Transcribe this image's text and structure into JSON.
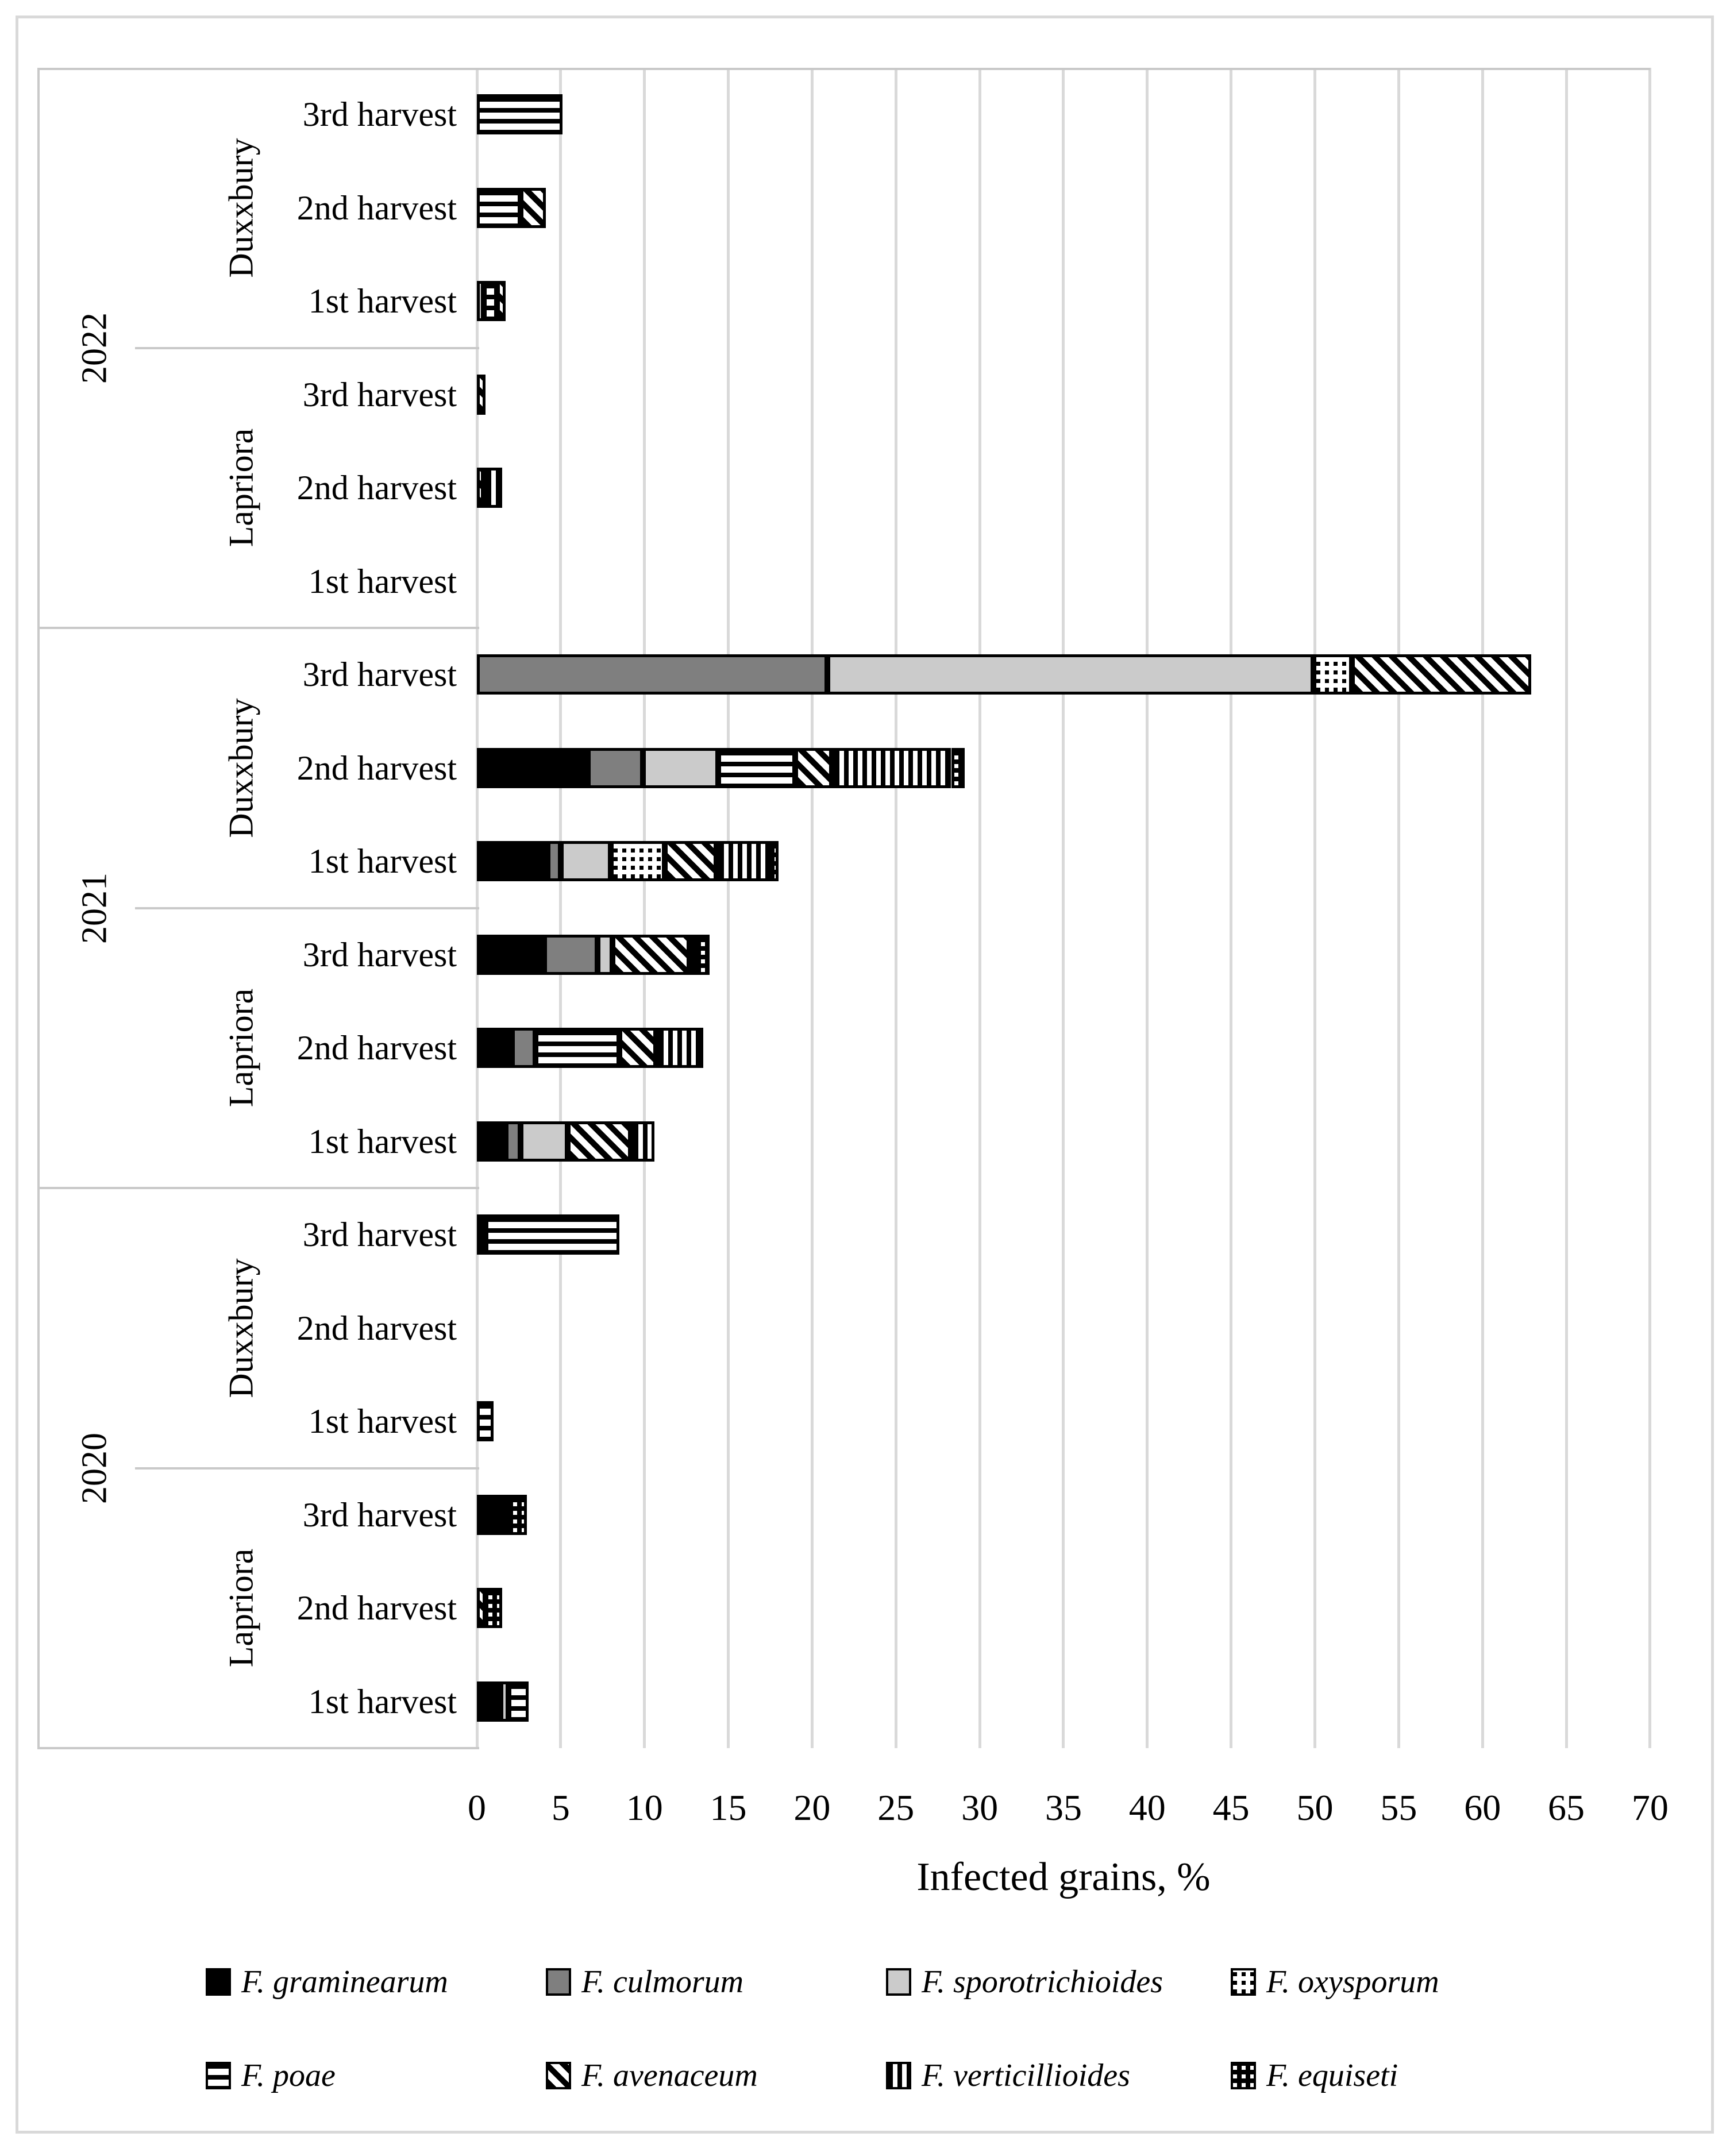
{
  "chart_data": {
    "type": "bar",
    "orientation": "horizontal",
    "stacked": true,
    "title": "",
    "xlabel": "Infected grains, %",
    "xlim": [
      0,
      70
    ],
    "x_ticks": [
      0,
      5,
      10,
      15,
      20,
      25,
      30,
      35,
      40,
      45,
      50,
      55,
      60,
      65,
      70
    ],
    "grid": "vertical-light-gray",
    "legend_position": "bottom",
    "categories": [
      {
        "year": "2022",
        "variety": "Duxxbury",
        "harvest": "3rd harvest"
      },
      {
        "year": "2022",
        "variety": "Duxxbury",
        "harvest": "2nd harvest"
      },
      {
        "year": "2022",
        "variety": "Duxxbury",
        "harvest": "1st harvest"
      },
      {
        "year": "2022",
        "variety": "Lapriora",
        "harvest": "3rd harvest"
      },
      {
        "year": "2022",
        "variety": "Lapriora",
        "harvest": "2nd harvest"
      },
      {
        "year": "2022",
        "variety": "Lapriora",
        "harvest": "1st harvest"
      },
      {
        "year": "2021",
        "variety": "Duxxbury",
        "harvest": "3rd harvest"
      },
      {
        "year": "2021",
        "variety": "Duxxbury",
        "harvest": "2nd harvest"
      },
      {
        "year": "2021",
        "variety": "Duxxbury",
        "harvest": "1st harvest"
      },
      {
        "year": "2021",
        "variety": "Lapriora",
        "harvest": "3rd harvest"
      },
      {
        "year": "2021",
        "variety": "Lapriora",
        "harvest": "2nd harvest"
      },
      {
        "year": "2021",
        "variety": "Lapriora",
        "harvest": "1st harvest"
      },
      {
        "year": "2020",
        "variety": "Duxxbury",
        "harvest": "3rd harvest"
      },
      {
        "year": "2020",
        "variety": "Duxxbury",
        "harvest": "2nd harvest"
      },
      {
        "year": "2020",
        "variety": "Duxxbury",
        "harvest": "1st harvest"
      },
      {
        "year": "2020",
        "variety": "Lapriora",
        "harvest": "3rd harvest"
      },
      {
        "year": "2020",
        "variety": "Lapriora",
        "harvest": "2nd harvest"
      },
      {
        "year": "2020",
        "variety": "Lapriora",
        "harvest": "1st harvest"
      }
    ],
    "series": [
      {
        "key": "graminearum",
        "name": "F. graminearum",
        "pattern": "solid-black",
        "values": [
          0,
          0,
          0,
          0,
          0,
          0,
          0,
          6.6,
          4.2,
          4.0,
          2.1,
          1.7,
          0.5,
          0,
          0,
          2.0,
          0,
          1.4
        ]
      },
      {
        "key": "culmorum",
        "name": "F. culmorum",
        "pattern": "solid-dark-gray",
        "values": [
          0,
          0,
          0,
          0,
          0,
          0,
          20.9,
          3.3,
          0.8,
          3.2,
          1.4,
          0.9,
          0,
          0,
          0,
          0,
          0,
          0
        ]
      },
      {
        "key": "sporotrichioides",
        "name": "F. sporotrichioides",
        "pattern": "solid-light-gray",
        "values": [
          0,
          0,
          0.4,
          0,
          0,
          0,
          29.0,
          4.5,
          3.0,
          0.9,
          0,
          2.8,
          0,
          0,
          0,
          0,
          0,
          0.5
        ]
      },
      {
        "key": "oxysporum",
        "name": "F. oxysporum",
        "pattern": "dotted-grid",
        "values": [
          0,
          0,
          0,
          0,
          0,
          0,
          2.3,
          0,
          3.2,
          0,
          0,
          0,
          0,
          0,
          0,
          0,
          0,
          0
        ]
      },
      {
        "key": "poae",
        "name": "F. poae",
        "pattern": "horizontal-stripes",
        "values": [
          5.1,
          2.6,
          0.8,
          0,
          0,
          0,
          0,
          4.6,
          0,
          0,
          5.0,
          0,
          8.0,
          0,
          1.0,
          0,
          0,
          1.2
        ]
      },
      {
        "key": "avenaceum",
        "name": "F. avenaceum",
        "pattern": "diagonal-stripes",
        "values": [
          0,
          1.5,
          0.5,
          0.5,
          0.4,
          0,
          10.7,
          2.2,
          3.1,
          4.6,
          2.2,
          3.8,
          0,
          0,
          0,
          0,
          0.5,
          0
        ]
      },
      {
        "key": "verticillioides",
        "name": "F. verticillioides",
        "pattern": "vertical-stripes",
        "values": [
          0,
          0,
          0,
          0,
          1.1,
          0,
          0,
          7.1,
          3.3,
          0.5,
          2.8,
          1.4,
          0,
          0,
          0,
          0,
          0,
          0
        ]
      },
      {
        "key": "equiseti",
        "name": "F. equiseti",
        "pattern": "checker-white-on-black",
        "values": [
          0,
          0,
          0,
          0,
          0,
          0,
          0,
          0.8,
          0.4,
          0.7,
          0,
          0,
          0,
          0,
          0,
          1.0,
          1.0,
          0
        ]
      }
    ]
  },
  "legend": {
    "rows": [
      [
        "graminearum",
        "culmorum",
        "sporotrichioides",
        "oxysporum"
      ],
      [
        "poae",
        "avenaceum",
        "verticillioides",
        "equiseti"
      ]
    ]
  },
  "colors": {
    "graminearum": "#000000",
    "culmorum": "#7f7f7f",
    "sporotrichioides": "#cbcbcb",
    "gridline": "#d9d9d9",
    "panel_line": "#c9c9c9",
    "figure_border": "#d9d9d9",
    "text": "#000000",
    "background": "#ffffff"
  }
}
